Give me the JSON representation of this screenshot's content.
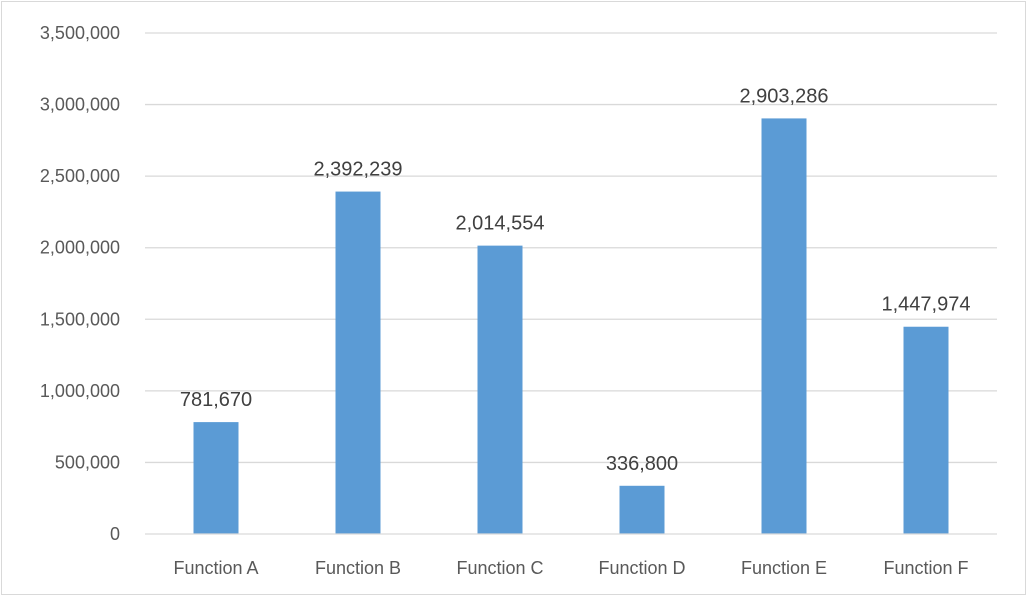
{
  "chart_data": {
    "type": "bar",
    "title": "",
    "xlabel": "",
    "ylabel": "",
    "categories": [
      "Function A",
      "Function B",
      "Function C",
      "Function D",
      "Function E",
      "Function F"
    ],
    "values": [
      781670,
      2392239,
      2014554,
      336800,
      2903286,
      1447974
    ],
    "data_labels": [
      "781,670",
      "2,392,239",
      "2,014,554",
      "336,800",
      "2,903,286",
      "1,447,974"
    ],
    "ylim": [
      0,
      3500000
    ],
    "yticks": [
      0,
      500000,
      1000000,
      1500000,
      2000000,
      2500000,
      3000000,
      3500000
    ],
    "ytick_labels": [
      "0",
      "500,000",
      "1,000,000",
      "1,500,000",
      "2,000,000",
      "2,500,000",
      "3,000,000",
      "3,500,000"
    ],
    "grid": true,
    "legend": "none",
    "bar_color": "#5b9bd5",
    "grid_color": "#d9d9d9"
  }
}
